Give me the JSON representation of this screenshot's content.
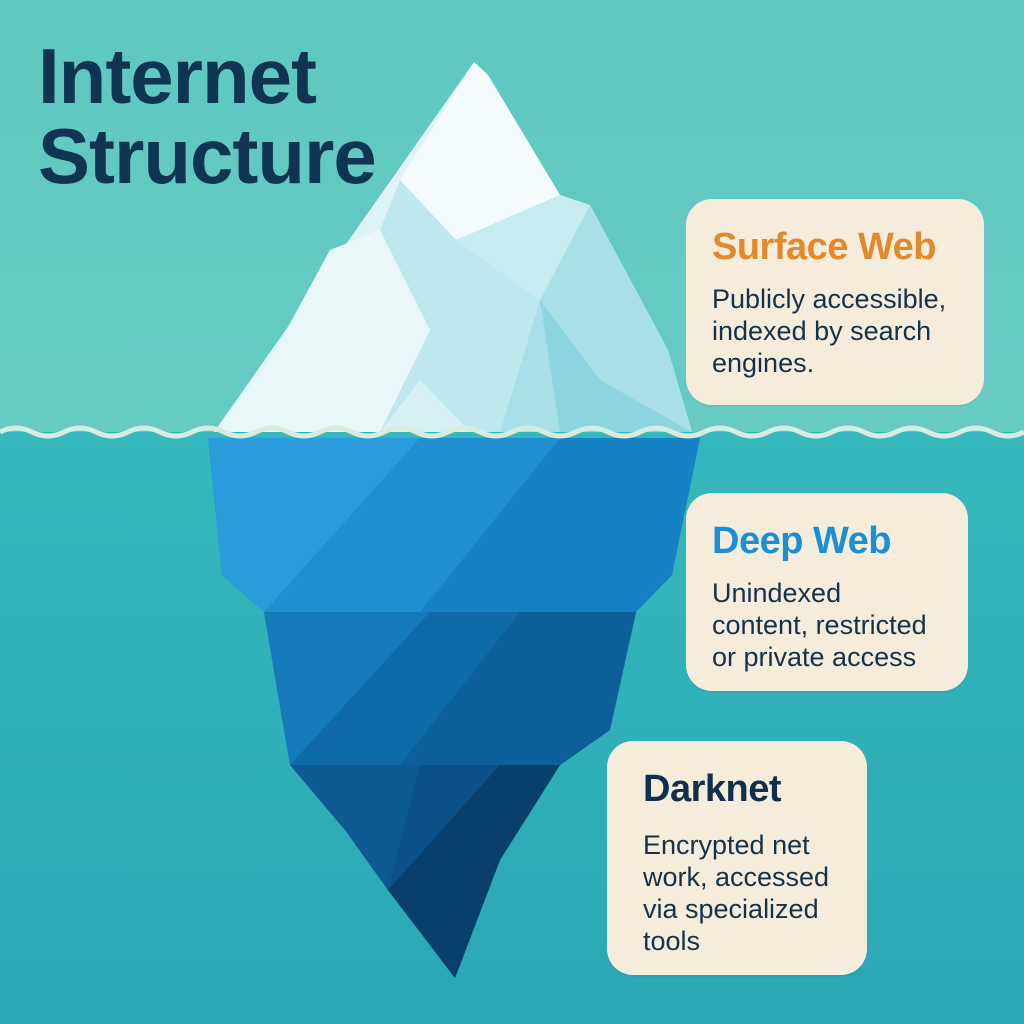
{
  "title_line1": "Internet",
  "title_line2": "Structure",
  "layers": [
    {
      "heading": "Surface Web",
      "description": "Publicly accessible, indexed by search engines.",
      "color": "#e08a2c"
    },
    {
      "heading": "Deep Web",
      "description": "Unindexed content, restricted or private access",
      "color": "#1a8fd6"
    },
    {
      "heading": "Darknet",
      "description": "Encrypted net work, accessed via specialized tools",
      "color": "#102f4c"
    }
  ],
  "colors": {
    "sky": "#5ec7c1",
    "sea": "#2aa7b4",
    "card_background": "#f6ecdc",
    "title": "#0f3553"
  }
}
